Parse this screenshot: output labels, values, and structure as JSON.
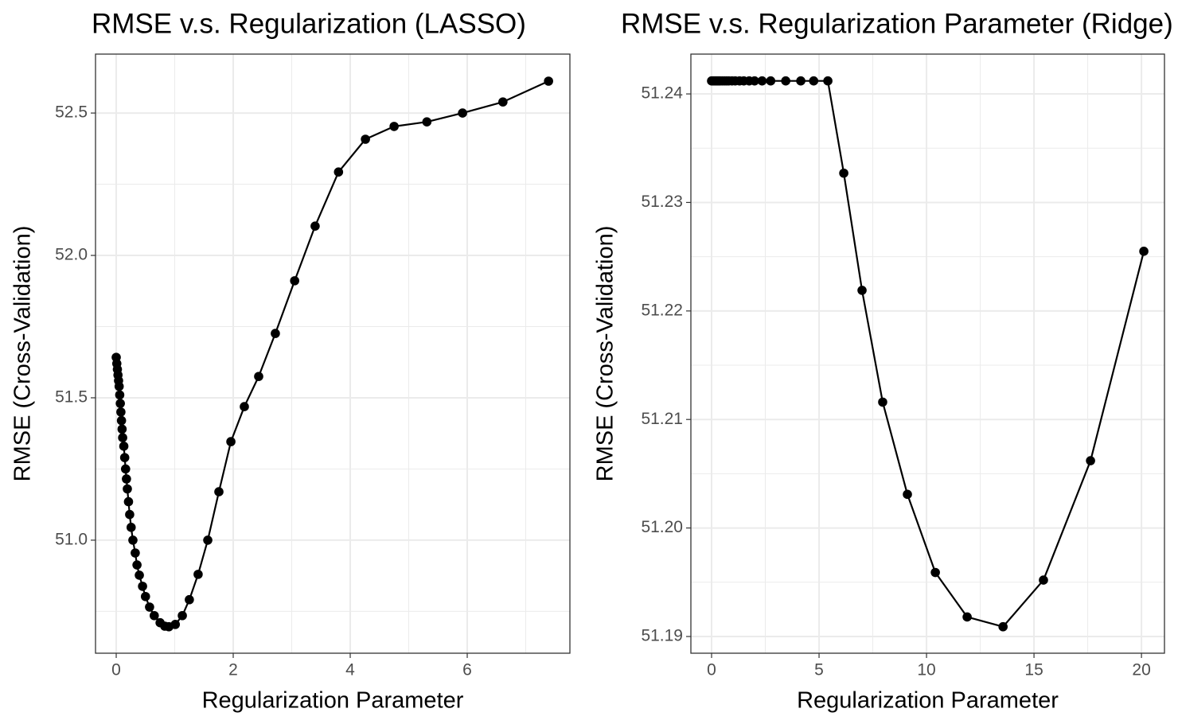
{
  "chart_data": [
    {
      "type": "line",
      "title": "RMSE v.s. Regularization (LASSO)",
      "xlabel": "Regularization Parameter",
      "ylabel": "RMSE (Cross-Validation)",
      "color": "#000000",
      "grid": true,
      "minor_grid": true,
      "xlim": [
        -0.354,
        7.755
      ],
      "ylim": [
        50.603,
        52.707
      ],
      "xticks": [
        0,
        2,
        4,
        6
      ],
      "yticks": [
        {
          "value": 51,
          "label": "51.0"
        },
        51.5,
        {
          "value": 52,
          "label": "52.0"
        },
        52.5
      ],
      "x": [
        0,
        0.01,
        0.02,
        0.03,
        0.04,
        0.05,
        0.06,
        0.07,
        0.08,
        0.09,
        0.1,
        0.11,
        0.13,
        0.145,
        0.16,
        0.175,
        0.19,
        0.21,
        0.23,
        0.255,
        0.285,
        0.325,
        0.355,
        0.395,
        0.45,
        0.5,
        0.57,
        0.65,
        0.75,
        0.83,
        0.9,
        1.01,
        1.13,
        1.25,
        1.4,
        1.565,
        1.755,
        1.96,
        2.19,
        2.435,
        2.72,
        3.05,
        3.4,
        3.8,
        4.26,
        4.75,
        5.31,
        5.92,
        6.61,
        7.39
      ],
      "values": [
        51.642,
        51.62,
        51.6,
        51.58,
        51.56,
        51.54,
        51.51,
        51.48,
        51.45,
        51.42,
        51.39,
        51.36,
        51.33,
        51.29,
        51.25,
        51.215,
        51.18,
        51.135,
        51.09,
        51.045,
        51.0,
        50.955,
        50.913,
        50.877,
        50.838,
        50.802,
        50.765,
        50.735,
        50.71,
        50.698,
        50.696,
        50.704,
        50.735,
        50.791,
        50.88,
        51.0,
        51.17,
        51.346,
        51.469,
        51.575,
        51.726,
        51.911,
        52.103,
        52.293,
        52.408,
        52.453,
        52.469,
        52.5,
        52.539,
        52.612
      ]
    },
    {
      "type": "line",
      "title": "RMSE v.s. Regularization Parameter (Ridge)",
      "xlabel": "Regularization Parameter",
      "ylabel": "RMSE (Cross-Validation)",
      "color": "#000000",
      "grid": true,
      "minor_grid": true,
      "xlim": [
        -0.963,
        21.07
      ],
      "ylim": [
        51.18846,
        51.24367
      ],
      "xticks": [
        0,
        5,
        10,
        15,
        20
      ],
      "yticks": [
        51.19,
        {
          "value": 51.2,
          "label": "51.20"
        },
        51.21,
        51.22,
        51.23,
        51.24
      ],
      "x": [
        0,
        0.05,
        0.1,
        0.15,
        0.2,
        0.25,
        0.3,
        0.35,
        0.4,
        0.5,
        0.6,
        0.7,
        0.8,
        0.95,
        1.1,
        1.3,
        1.5,
        1.75,
        2.0,
        2.35,
        2.75,
        3.45,
        4.15,
        4.75,
        5.41,
        6.15,
        7.0,
        7.96,
        9.11,
        10.41,
        11.89,
        13.56,
        15.44,
        17.63,
        20.11
      ],
      "values": [
        51.2412,
        51.2412,
        51.2412,
        51.2412,
        51.2412,
        51.2412,
        51.2412,
        51.2412,
        51.2412,
        51.2412,
        51.2412,
        51.2412,
        51.2412,
        51.2412,
        51.2412,
        51.2412,
        51.2412,
        51.2412,
        51.2412,
        51.2412,
        51.2412,
        51.2412,
        51.2412,
        51.2412,
        51.2412,
        51.2327,
        51.2219,
        51.2116,
        51.2031,
        51.1959,
        51.1918,
        51.1909,
        51.1952,
        51.2062,
        51.2255
      ]
    }
  ]
}
